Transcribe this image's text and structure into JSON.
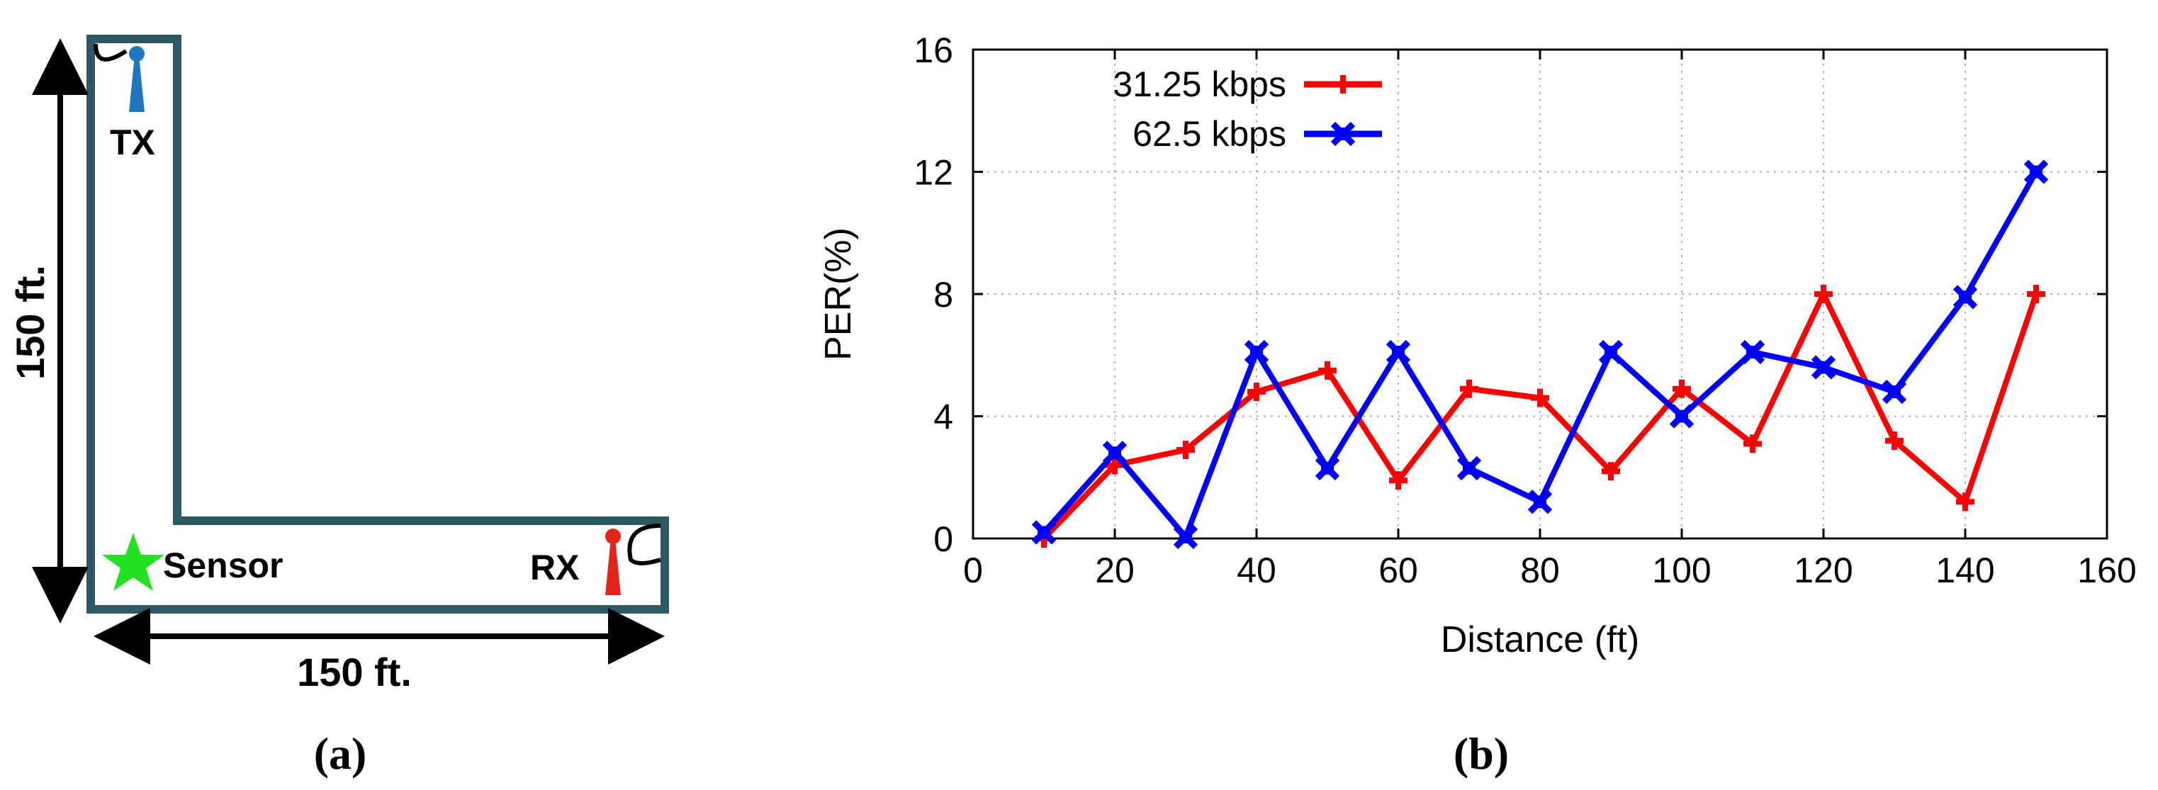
{
  "panel_a": {
    "tx_label": "TX",
    "rx_label": "RX",
    "sensor_label": "Sensor",
    "vertical_dim": "150 ft.",
    "horizontal_dim": "150 ft.",
    "caption": "(a)",
    "corridor_color": "#2d5963",
    "tx_color": "#1f77c0",
    "rx_color": "#e3241b",
    "sensor_color": "#22e022"
  },
  "panel_b": {
    "caption": "(b)"
  },
  "chart_data": {
    "type": "line",
    "title": "",
    "xlabel": "Distance (ft)",
    "ylabel": "PER(%)",
    "xlim": [
      0,
      160
    ],
    "ylim": [
      0,
      16
    ],
    "xticks": [
      0,
      20,
      40,
      60,
      80,
      100,
      120,
      140,
      160
    ],
    "yticks": [
      0,
      4,
      8,
      12,
      16
    ],
    "grid": true,
    "legend_position": "top-left",
    "x": [
      10,
      20,
      30,
      40,
      50,
      60,
      70,
      80,
      90,
      100,
      110,
      120,
      130,
      140,
      150
    ],
    "series": [
      {
        "name": "31.25 kbps",
        "color": "#ff0000",
        "marker": "plus",
        "values": [
          0,
          2.4,
          2.9,
          4.8,
          5.5,
          1.9,
          4.9,
          4.6,
          2.2,
          4.9,
          3.1,
          8.0,
          3.2,
          1.2,
          8.0
        ]
      },
      {
        "name": "62.5 kbps",
        "color": "#0000ff",
        "marker": "x-box",
        "values": [
          0.2,
          2.8,
          0.05,
          6.1,
          2.3,
          6.1,
          2.3,
          1.2,
          6.1,
          4.0,
          6.1,
          5.6,
          4.8,
          7.9,
          12.0
        ]
      }
    ]
  }
}
